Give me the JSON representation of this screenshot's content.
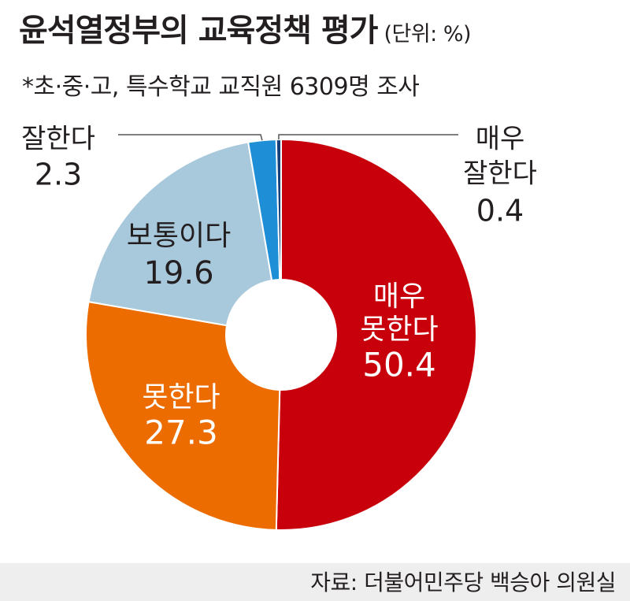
{
  "title": "윤석열정부의 교육정책 평가",
  "unit": "(단위: %)",
  "subtitle": "*초·중·고, 특수학교 교직원 6309명 조사",
  "source": "자료: 더불어민주당 백승아 의원실",
  "chart_data": {
    "type": "pie",
    "donut": true,
    "categories": [
      "매우 못한다",
      "못한다",
      "보통이다",
      "잘한다",
      "매우 잘한다"
    ],
    "values": [
      50.4,
      27.3,
      19.6,
      2.3,
      0.4
    ],
    "value_labels": [
      "50.4",
      "27.3",
      "19.6",
      "2.3",
      "0.4"
    ],
    "label_lines": [
      [
        "매우",
        "못한다"
      ],
      [
        "못한다"
      ],
      [
        "보통이다"
      ],
      [
        "잘한다"
      ],
      [
        "매우",
        "잘한다"
      ]
    ],
    "colors": [
      "#c8000b",
      "#ec6c00",
      "#a8c8db",
      "#1e8ed6",
      "#15407a"
    ],
    "label_colors": [
      "#ffffff",
      "#ffffff",
      "#231f20",
      "#231f20",
      "#231f20"
    ],
    "legend": "none"
  }
}
